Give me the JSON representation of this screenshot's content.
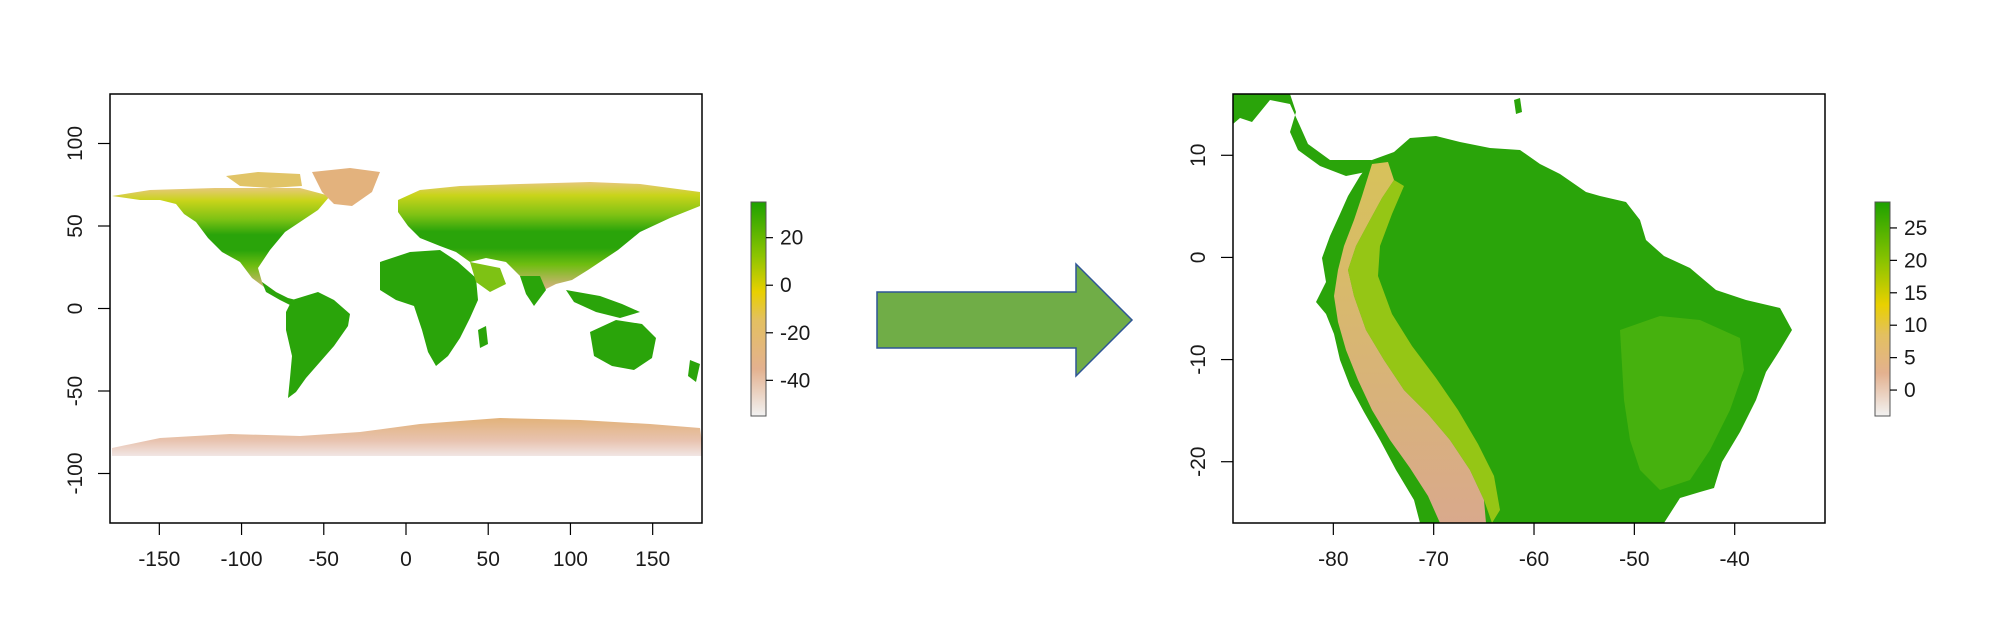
{
  "colors": {
    "scale_low": "#f2f2f2",
    "scale_mid_low": "#e3b18f",
    "scale_mid": "#e9d000",
    "scale_high": "#1ea100",
    "frame": "#000000",
    "arrow_fill": "#70ad47",
    "arrow_stroke": "#2f5597"
  },
  "world_map": {
    "x_ticks": [
      -150,
      -100,
      -50,
      0,
      50,
      100,
      150
    ],
    "y_ticks": [
      100,
      50,
      0,
      -50,
      -100
    ],
    "x_tick_labels": [
      "-150",
      "-100",
      "-50",
      "0",
      "50",
      "100",
      "150"
    ],
    "y_tick_labels": [
      "100",
      "50",
      "0",
      "-50",
      "-100"
    ],
    "xlim": [
      -180,
      180
    ],
    "ylim": [
      -130,
      130
    ],
    "legend": {
      "ticks": [
        20,
        0,
        -20,
        -40
      ],
      "tick_labels": [
        "20",
        "0",
        "-20",
        "-40"
      ],
      "range": [
        -55,
        35
      ]
    }
  },
  "arrow": {
    "icon": "right-arrow-icon",
    "direction": "right"
  },
  "south_america_map": {
    "x_ticks": [
      -80,
      -70,
      -60,
      -50,
      -40
    ],
    "y_ticks": [
      10,
      0,
      -10,
      -20
    ],
    "x_tick_labels": [
      "-80",
      "-70",
      "-60",
      "-50",
      "-40"
    ],
    "y_tick_labels": [
      "10",
      "0",
      "-10",
      "-20"
    ],
    "xlim": [
      -90,
      -31
    ],
    "ylim": [
      -26,
      16
    ],
    "legend": {
      "ticks": [
        25,
        20,
        15,
        10,
        5,
        0
      ],
      "tick_labels": [
        "25",
        "20",
        "15",
        "10",
        "5",
        "0"
      ],
      "range": [
        -4,
        29
      ]
    }
  }
}
